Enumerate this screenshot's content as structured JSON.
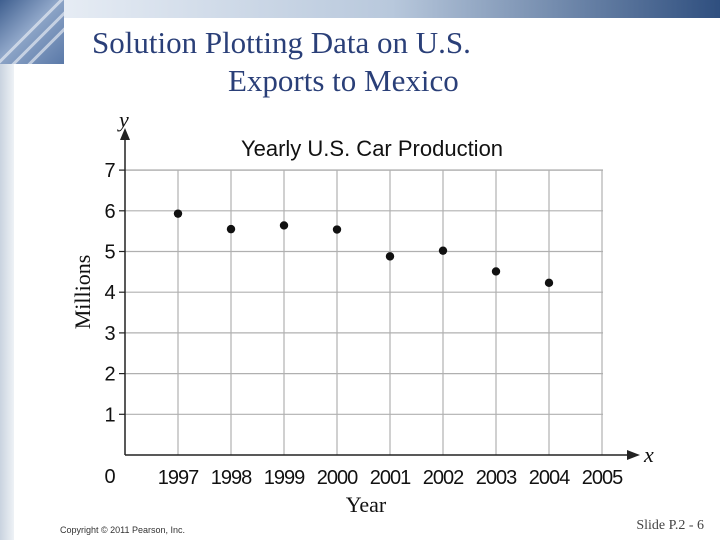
{
  "slide": {
    "title_line1": "Solution Plotting Data on U.S.",
    "title_line2": "Exports to Mexico",
    "copyright": "Copyright © 2011 Pearson, Inc.",
    "slide_number": "Slide P.2 - 6",
    "title_color": "#2a3f78"
  },
  "chart_data": {
    "type": "scatter",
    "title": "Yearly U.S. Car Production",
    "xlabel": "Year",
    "ylabel": "Millions",
    "x_axis_letter": "x",
    "y_axis_letter": "y",
    "origin_label": "0",
    "categories": [
      "1997",
      "1998",
      "1999",
      "2000",
      "2001",
      "2002",
      "2003",
      "2004",
      "2005"
    ],
    "yticks": [
      1,
      2,
      3,
      4,
      5,
      6,
      7
    ],
    "ylim": [
      0,
      7.5
    ],
    "grid": true,
    "series": [
      {
        "x": [
          "1997",
          "1998",
          "1999",
          "2000",
          "2001",
          "2002",
          "2003",
          "2004"
        ],
        "values": [
          5.93,
          5.55,
          5.64,
          5.54,
          4.88,
          5.02,
          4.51,
          4.23
        ]
      }
    ]
  }
}
